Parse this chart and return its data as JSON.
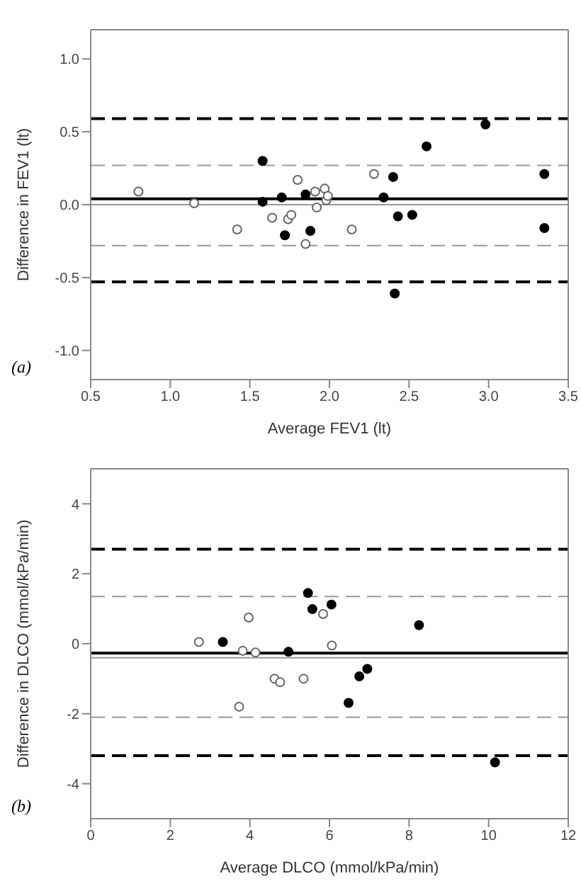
{
  "chart_data": [
    {
      "type": "scatter",
      "xlabel": "Average FEV1 (lt)",
      "ylabel": "Difference in FEV1 (lt)",
      "annotations": [
        "(a)"
      ],
      "marker": "circle",
      "legend": false,
      "xlim": [
        0.5,
        3.5
      ],
      "xticks": [
        0.5,
        {
          "value": 1,
          "label": "1.0"
        },
        1.5,
        {
          "value": 2,
          "label": "2.0"
        },
        2.5,
        {
          "value": 3,
          "label": "3.0"
        },
        3.5
      ],
      "ylim": [
        -1.2,
        1.2
      ],
      "yticks": [
        {
          "value": -1,
          "label": "-1.0"
        },
        -0.5,
        {
          "value": 0,
          "label": "0.0"
        },
        0.5,
        {
          "value": 1,
          "label": "1.0"
        }
      ],
      "ref_lines": [
        {
          "axis": "y",
          "value": 0.59,
          "color": "#000000",
          "line_style": "dashed"
        },
        {
          "axis": "y",
          "value": 0.27,
          "color": "#999999",
          "line_style": "dashed"
        },
        {
          "axis": "y",
          "value": 0.04,
          "color": "#000000",
          "line_style": "solid"
        },
        {
          "axis": "y",
          "value": 0,
          "color": "#999999",
          "line_style": "solid"
        },
        {
          "axis": "y",
          "value": -0.28,
          "color": "#999999",
          "line_style": "dashed"
        },
        {
          "axis": "y",
          "value": -0.53,
          "color": "#000000",
          "line_style": "dashed"
        }
      ],
      "series": [
        {
          "marker": "circle-open",
          "color": "#666666",
          "x": [
            0.8,
            1.15,
            1.42,
            1.64,
            1.74,
            1.76,
            1.8,
            1.85,
            1.91,
            1.92,
            1.97,
            1.98,
            1.99,
            2.14,
            2.28
          ],
          "values": [
            0.09,
            0.01,
            -0.17,
            -0.09,
            -0.1,
            -0.07,
            0.17,
            -0.27,
            0.09,
            -0.02,
            0.11,
            0.03,
            0.06,
            -0.17,
            0.21
          ]
        },
        {
          "marker": "circle",
          "color": "#000000",
          "x": [
            1.58,
            1.58,
            1.7,
            1.72,
            1.85,
            1.88,
            2.34,
            2.4,
            2.41,
            2.43,
            2.52,
            2.61,
            2.98,
            3.35,
            3.35
          ],
          "values": [
            0.3,
            0.02,
            0.05,
            -0.21,
            0.07,
            -0.18,
            0.05,
            0.19,
            -0.61,
            -0.08,
            -0.07,
            0.4,
            0.55,
            0.21,
            -0.16
          ]
        }
      ]
    },
    {
      "type": "scatter",
      "xlabel": "Average DLCO (mmol/kPa/min)",
      "ylabel": "Difference in DLCO (mmol/kPa/min)",
      "annotations": [
        "(b)"
      ],
      "marker": "circle",
      "legend": false,
      "xlim": [
        0,
        12
      ],
      "xticks": [
        0,
        2,
        4,
        6,
        8,
        10,
        12
      ],
      "ylim": [
        -5,
        5
      ],
      "yticks": [
        -4,
        -2,
        0,
        2,
        4
      ],
      "ref_lines": [
        {
          "axis": "y",
          "value": 2.7,
          "color": "#000000",
          "line_style": "dashed"
        },
        {
          "axis": "y",
          "value": 1.35,
          "color": "#999999",
          "line_style": "dashed"
        },
        {
          "axis": "y",
          "value": -0.27,
          "color": "#000000",
          "line_style": "solid"
        },
        {
          "axis": "y",
          "value": -0.4,
          "color": "#999999",
          "line_style": "solid"
        },
        {
          "axis": "y",
          "value": -2.1,
          "color": "#999999",
          "line_style": "dashed"
        },
        {
          "axis": "y",
          "value": -3.2,
          "color": "#000000",
          "line_style": "dashed"
        }
      ],
      "series": [
        {
          "marker": "circle-open",
          "color": "#666666",
          "x": [
            2.72,
            3.73,
            3.82,
            3.97,
            4.14,
            4.62,
            4.76,
            5.35,
            5.84,
            6.06
          ],
          "values": [
            0.05,
            -1.8,
            -0.2,
            0.75,
            -0.25,
            -1.0,
            -1.1,
            -1.0,
            0.85,
            -0.05
          ]
        },
        {
          "marker": "circle",
          "color": "#000000",
          "x": [
            3.32,
            4.97,
            5.46,
            5.57,
            6.05,
            6.48,
            6.75,
            6.95,
            8.25,
            10.16
          ],
          "values": [
            0.05,
            -0.23,
            1.45,
            0.99,
            1.12,
            -1.69,
            -0.93,
            -0.72,
            0.53,
            -3.39
          ]
        }
      ]
    }
  ]
}
